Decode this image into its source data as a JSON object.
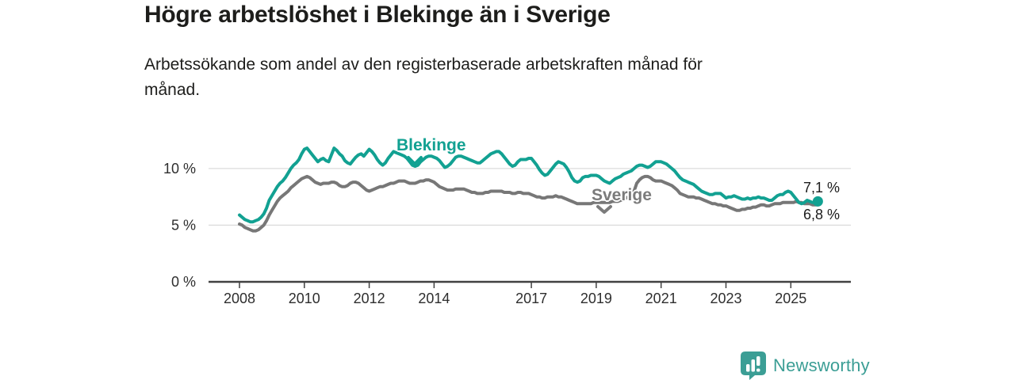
{
  "header": {
    "title": "Högre arbetslöshet i Blekinge än i Sverige",
    "subtitle_lines": [
      "Arbetssökande som andel av den registerbaserade arbetskraften månad för",
      "månad."
    ]
  },
  "chart_data": {
    "type": "line",
    "unit": "percent",
    "frequency": "monthly",
    "x_start": "2008-01",
    "x_end": "2025-11",
    "ylim": [
      0,
      13
    ],
    "grid": "horizontal",
    "x_tick_years": [
      2008,
      2010,
      2012,
      2014,
      2017,
      2019,
      2021,
      2023,
      2025
    ],
    "y_ticks": [
      {
        "value": 0,
        "label": "0 %"
      },
      {
        "value": 5,
        "label": "5 %"
      },
      {
        "value": 10,
        "label": "10 %"
      }
    ],
    "series": [
      {
        "name": "Blekinge",
        "color": "#12a192",
        "end_label": "7,1 %",
        "last_value": 7.1,
        "values": [
          5.9,
          5.7,
          5.5,
          5.4,
          5.3,
          5.3,
          5.4,
          5.5,
          5.7,
          6.0,
          6.5,
          7.2,
          7.6,
          8.0,
          8.4,
          8.7,
          8.9,
          9.2,
          9.6,
          10.0,
          10.3,
          10.5,
          10.8,
          11.3,
          11.7,
          11.8,
          11.5,
          11.2,
          10.9,
          10.6,
          10.8,
          10.9,
          10.7,
          10.6,
          11.2,
          11.8,
          11.6,
          11.3,
          11.1,
          10.7,
          10.5,
          10.4,
          10.7,
          11.0,
          11.2,
          11.3,
          11.1,
          11.4,
          11.7,
          11.5,
          11.2,
          10.8,
          10.5,
          10.3,
          10.5,
          10.9,
          11.2,
          11.5,
          11.4,
          11.3,
          11.2,
          11.1,
          10.9,
          10.6,
          10.3,
          10.2,
          10.3,
          10.6,
          10.8,
          11.0,
          11.1,
          11.1,
          11.0,
          10.9,
          10.7,
          10.4,
          10.1,
          10.2,
          10.4,
          10.7,
          11.0,
          11.1,
          11.1,
          11.0,
          10.9,
          10.8,
          10.7,
          10.6,
          10.5,
          10.5,
          10.7,
          10.9,
          11.1,
          11.3,
          11.4,
          11.5,
          11.5,
          11.3,
          11.0,
          10.7,
          10.4,
          10.2,
          10.3,
          10.6,
          10.8,
          10.8,
          10.8,
          10.9,
          10.9,
          10.6,
          10.3,
          9.9,
          9.6,
          9.4,
          9.5,
          9.8,
          10.1,
          10.4,
          10.6,
          10.5,
          10.4,
          10.1,
          9.7,
          9.2,
          8.9,
          8.8,
          8.9,
          9.2,
          9.3,
          9.3,
          9.4,
          9.4,
          9.4,
          9.3,
          9.1,
          8.9,
          8.8,
          8.7,
          8.9,
          9.1,
          9.2,
          9.3,
          9.5,
          9.6,
          9.7,
          9.8,
          10.0,
          10.2,
          10.3,
          10.3,
          10.2,
          10.1,
          10.2,
          10.4,
          10.6,
          10.6,
          10.6,
          10.5,
          10.4,
          10.2,
          10.0,
          9.8,
          9.5,
          9.2,
          9.0,
          8.9,
          8.8,
          8.7,
          8.6,
          8.4,
          8.2,
          8.0,
          7.9,
          7.8,
          7.7,
          7.7,
          7.8,
          7.8,
          7.8,
          7.6,
          7.4,
          7.5,
          7.5,
          7.6,
          7.5,
          7.4,
          7.3,
          7.3,
          7.4,
          7.3,
          7.4,
          7.4,
          7.5,
          7.4,
          7.4,
          7.3,
          7.2,
          7.2,
          7.4,
          7.6,
          7.7,
          7.7,
          7.9,
          8.0,
          7.9,
          7.6,
          7.3,
          7.0,
          6.9,
          7.0,
          7.2,
          7.1,
          7.0,
          7.0,
          7.1
        ]
      },
      {
        "name": "Sverige",
        "color": "#777777",
        "end_label": "6,8 %",
        "last_value": 6.8,
        "values": [
          5.1,
          5.0,
          4.8,
          4.7,
          4.6,
          4.5,
          4.5,
          4.6,
          4.8,
          5.0,
          5.4,
          5.9,
          6.3,
          6.7,
          7.1,
          7.4,
          7.6,
          7.8,
          8.0,
          8.3,
          8.5,
          8.7,
          8.9,
          9.1,
          9.2,
          9.3,
          9.2,
          9.0,
          8.8,
          8.7,
          8.6,
          8.7,
          8.7,
          8.7,
          8.8,
          8.8,
          8.7,
          8.5,
          8.4,
          8.4,
          8.5,
          8.7,
          8.8,
          8.8,
          8.7,
          8.5,
          8.3,
          8.1,
          8.0,
          8.1,
          8.2,
          8.3,
          8.4,
          8.4,
          8.5,
          8.6,
          8.7,
          8.7,
          8.8,
          8.9,
          8.9,
          8.9,
          8.8,
          8.7,
          8.7,
          8.7,
          8.8,
          8.9,
          8.9,
          9.0,
          9.0,
          8.9,
          8.8,
          8.6,
          8.4,
          8.3,
          8.2,
          8.1,
          8.1,
          8.1,
          8.2,
          8.2,
          8.2,
          8.2,
          8.1,
          8.0,
          7.9,
          7.9,
          7.8,
          7.8,
          7.8,
          7.9,
          7.9,
          8.0,
          8.0,
          8.0,
          8.0,
          8.0,
          7.9,
          7.9,
          7.9,
          7.8,
          7.8,
          7.9,
          7.9,
          7.8,
          7.8,
          7.8,
          7.7,
          7.6,
          7.5,
          7.5,
          7.4,
          7.4,
          7.5,
          7.5,
          7.5,
          7.6,
          7.5,
          7.5,
          7.4,
          7.3,
          7.2,
          7.1,
          7.0,
          6.9,
          6.9,
          6.9,
          6.9,
          6.9,
          6.9,
          7.0,
          7.0,
          7.0,
          7.0,
          7.0,
          7.0,
          7.0,
          7.1,
          7.1,
          7.1,
          7.2,
          7.3,
          7.4,
          7.5,
          7.6,
          8.0,
          8.7,
          9.0,
          9.2,
          9.3,
          9.3,
          9.2,
          9.0,
          8.9,
          8.9,
          8.9,
          8.8,
          8.7,
          8.6,
          8.5,
          8.3,
          8.1,
          7.8,
          7.7,
          7.6,
          7.5,
          7.5,
          7.5,
          7.4,
          7.4,
          7.3,
          7.2,
          7.1,
          7.0,
          6.9,
          6.9,
          6.8,
          6.8,
          6.7,
          6.7,
          6.6,
          6.5,
          6.4,
          6.3,
          6.3,
          6.4,
          6.4,
          6.5,
          6.5,
          6.6,
          6.6,
          6.7,
          6.8,
          6.8,
          6.7,
          6.7,
          6.8,
          6.9,
          6.9,
          6.9,
          7.0,
          7.0,
          7.0,
          7.0,
          7.0,
          7.1,
          7.0,
          7.0,
          6.9,
          6.9,
          6.9,
          6.8,
          6.8,
          6.8
        ]
      }
    ],
    "colors": {
      "blekinge": "#12a192",
      "sverige": "#777777",
      "grid": "#dcdcdc",
      "axis": "#414141"
    }
  },
  "footer": {
    "brand": "Newsworthy",
    "brand_color": "#3b9e95"
  }
}
